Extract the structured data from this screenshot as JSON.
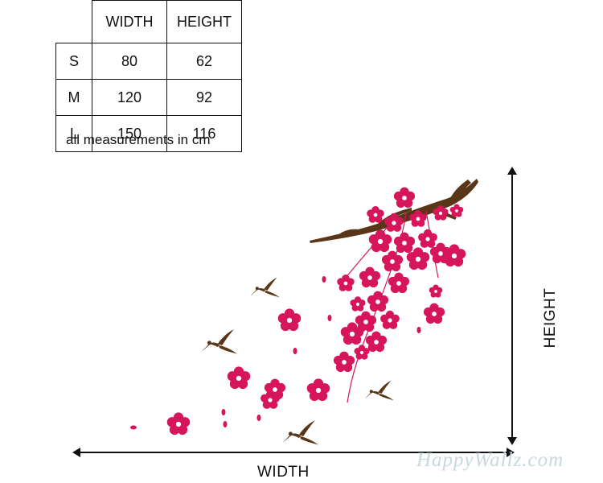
{
  "size_table": {
    "headers": [
      "",
      "WIDTH",
      "HEIGHT"
    ],
    "rows": [
      {
        "size": "S",
        "width": "80",
        "height": "62"
      },
      {
        "size": "M",
        "width": "120",
        "height": "92"
      },
      {
        "size": "L",
        "width": "150",
        "height": "116"
      }
    ]
  },
  "note": "all measurements in cm",
  "dimension_labels": {
    "width": "WIDTH",
    "height": "HEIGHT"
  },
  "watermark": "HappyWallz.com",
  "colors": {
    "blossom": "#d6155a",
    "branch": "#5a3618",
    "bird": "#5a3618",
    "watermark": "#c8d9de",
    "lines": "#111111"
  }
}
